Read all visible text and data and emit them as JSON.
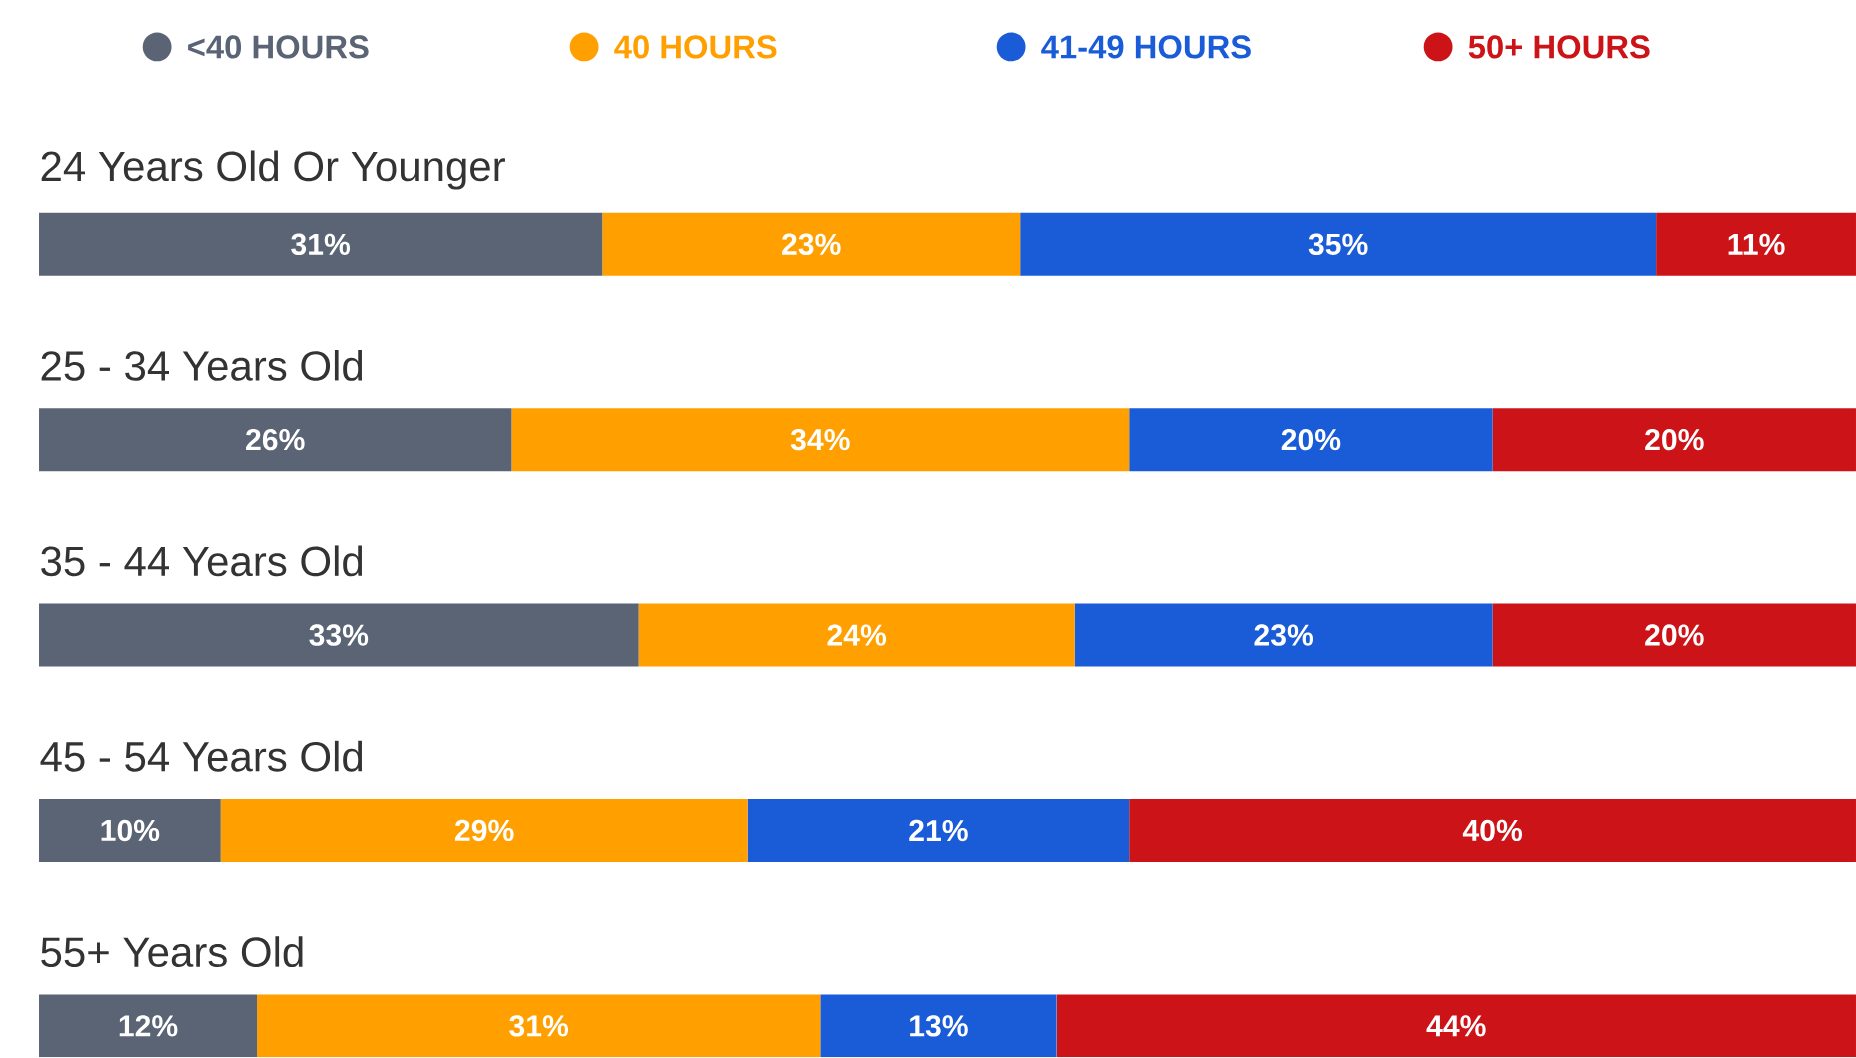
{
  "chart_data": {
    "type": "bar",
    "orientation": "horizontal",
    "stacked": true,
    "legend": "top",
    "tick_labels": false,
    "categories": [
      "24 Years Old Or Younger",
      "25 - 34 Years Old",
      "35 - 44 Years Old",
      "45 - 54 Years Old",
      "55+ Years Old"
    ],
    "series": [
      {
        "name": "<40 HOURS",
        "color": "#5a6475",
        "values": [
          31,
          26,
          33,
          10,
          12
        ],
        "value_labels": [
          "31%",
          "26%",
          "33%",
          "10%",
          "12%"
        ]
      },
      {
        "name": "40 HOURS",
        "color": "#ff9f00",
        "values": [
          23,
          34,
          24,
          29,
          31
        ],
        "value_labels": [
          "23%",
          "34%",
          "24%",
          "29%",
          "31%"
        ]
      },
      {
        "name": "41-49 HOURS",
        "color": "#1a5cd8",
        "values": [
          35,
          20,
          23,
          21,
          13
        ],
        "value_labels": [
          "35%",
          "20%",
          "23%",
          "21%",
          "13%"
        ]
      },
      {
        "name": "50+ HOURS",
        "color": "#cc1418",
        "values": [
          11,
          20,
          20,
          40,
          44
        ],
        "value_labels": [
          "11%",
          "20%",
          "20%",
          "40%",
          "44%"
        ]
      }
    ]
  }
}
